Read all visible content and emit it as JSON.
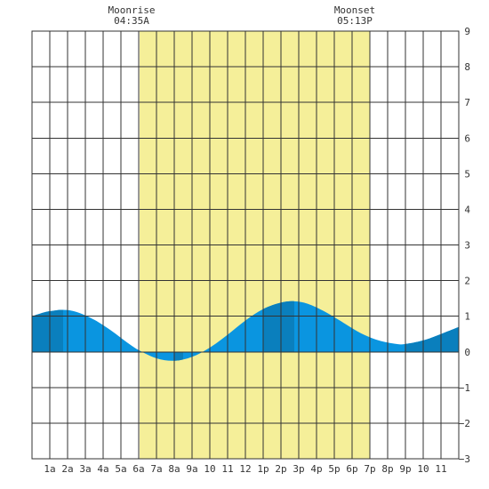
{
  "chart_data": {
    "type": "area",
    "xlim": [
      0,
      24
    ],
    "ylim": [
      -3,
      9
    ],
    "y_ticks": [
      9,
      8,
      7,
      6,
      5,
      4,
      3,
      2,
      1,
      0,
      -1,
      -2,
      -3
    ],
    "x_ticks": [
      {
        "hour": 1,
        "label": "1a"
      },
      {
        "hour": 2,
        "label": "2a"
      },
      {
        "hour": 3,
        "label": "3a"
      },
      {
        "hour": 4,
        "label": "4a"
      },
      {
        "hour": 5,
        "label": "5a"
      },
      {
        "hour": 6,
        "label": "6a"
      },
      {
        "hour": 7,
        "label": "7a"
      },
      {
        "hour": 8,
        "label": "8a"
      },
      {
        "hour": 9,
        "label": "9a"
      },
      {
        "hour": 10,
        "label": "10"
      },
      {
        "hour": 11,
        "label": "11"
      },
      {
        "hour": 12,
        "label": "12"
      },
      {
        "hour": 13,
        "label": "1p"
      },
      {
        "hour": 14,
        "label": "2p"
      },
      {
        "hour": 15,
        "label": "3p"
      },
      {
        "hour": 16,
        "label": "4p"
      },
      {
        "hour": 17,
        "label": "5p"
      },
      {
        "hour": 18,
        "label": "6p"
      },
      {
        "hour": 19,
        "label": "7p"
      },
      {
        "hour": 20,
        "label": "8p"
      },
      {
        "hour": 21,
        "label": "9p"
      },
      {
        "hour": 22,
        "label": "10"
      },
      {
        "hour": 23,
        "label": "11"
      }
    ],
    "daylight": {
      "start": 6.05,
      "end": 19.0
    },
    "tide_points": [
      {
        "x": 0.0,
        "y": 1.0
      },
      {
        "x": 0.5,
        "y": 1.08
      },
      {
        "x": 1.0,
        "y": 1.14
      },
      {
        "x": 1.75,
        "y": 1.18
      },
      {
        "x": 2.5,
        "y": 1.12
      },
      {
        "x": 3.5,
        "y": 0.9
      },
      {
        "x": 4.5,
        "y": 0.58
      },
      {
        "x": 5.25,
        "y": 0.3
      },
      {
        "x": 6.0,
        "y": 0.05
      },
      {
        "x": 7.0,
        "y": -0.18
      },
      {
        "x": 8.0,
        "y": -0.25
      },
      {
        "x": 9.0,
        "y": -0.14
      },
      {
        "x": 10.0,
        "y": 0.12
      },
      {
        "x": 11.0,
        "y": 0.48
      },
      {
        "x": 12.0,
        "y": 0.88
      },
      {
        "x": 13.0,
        "y": 1.2
      },
      {
        "x": 14.0,
        "y": 1.38
      },
      {
        "x": 14.75,
        "y": 1.42
      },
      {
        "x": 15.5,
        "y": 1.35
      },
      {
        "x": 16.5,
        "y": 1.12
      },
      {
        "x": 17.5,
        "y": 0.82
      },
      {
        "x": 18.5,
        "y": 0.52
      },
      {
        "x": 19.5,
        "y": 0.32
      },
      {
        "x": 20.5,
        "y": 0.22
      },
      {
        "x": 21.0,
        "y": 0.22
      },
      {
        "x": 22.0,
        "y": 0.32
      },
      {
        "x": 23.0,
        "y": 0.5
      },
      {
        "x": 24.0,
        "y": 0.7
      }
    ],
    "dark_bands": [
      {
        "start": 0.0,
        "end": 1.75
      },
      {
        "start": 8.0,
        "end": 8.5
      },
      {
        "start": 13.0,
        "end": 14.75
      },
      {
        "start": 21.0,
        "end": 24.0
      }
    ],
    "colors": {
      "daylight": "#f5ef99",
      "tide": "#0a95e0",
      "tide_dark": "#0a7fbd",
      "grid": "#333333"
    }
  },
  "events": {
    "moonrise_label": "Moonrise",
    "moonrise_time": "04:35A",
    "moonset_label": "Moonset",
    "moonset_time": "05:13P"
  }
}
